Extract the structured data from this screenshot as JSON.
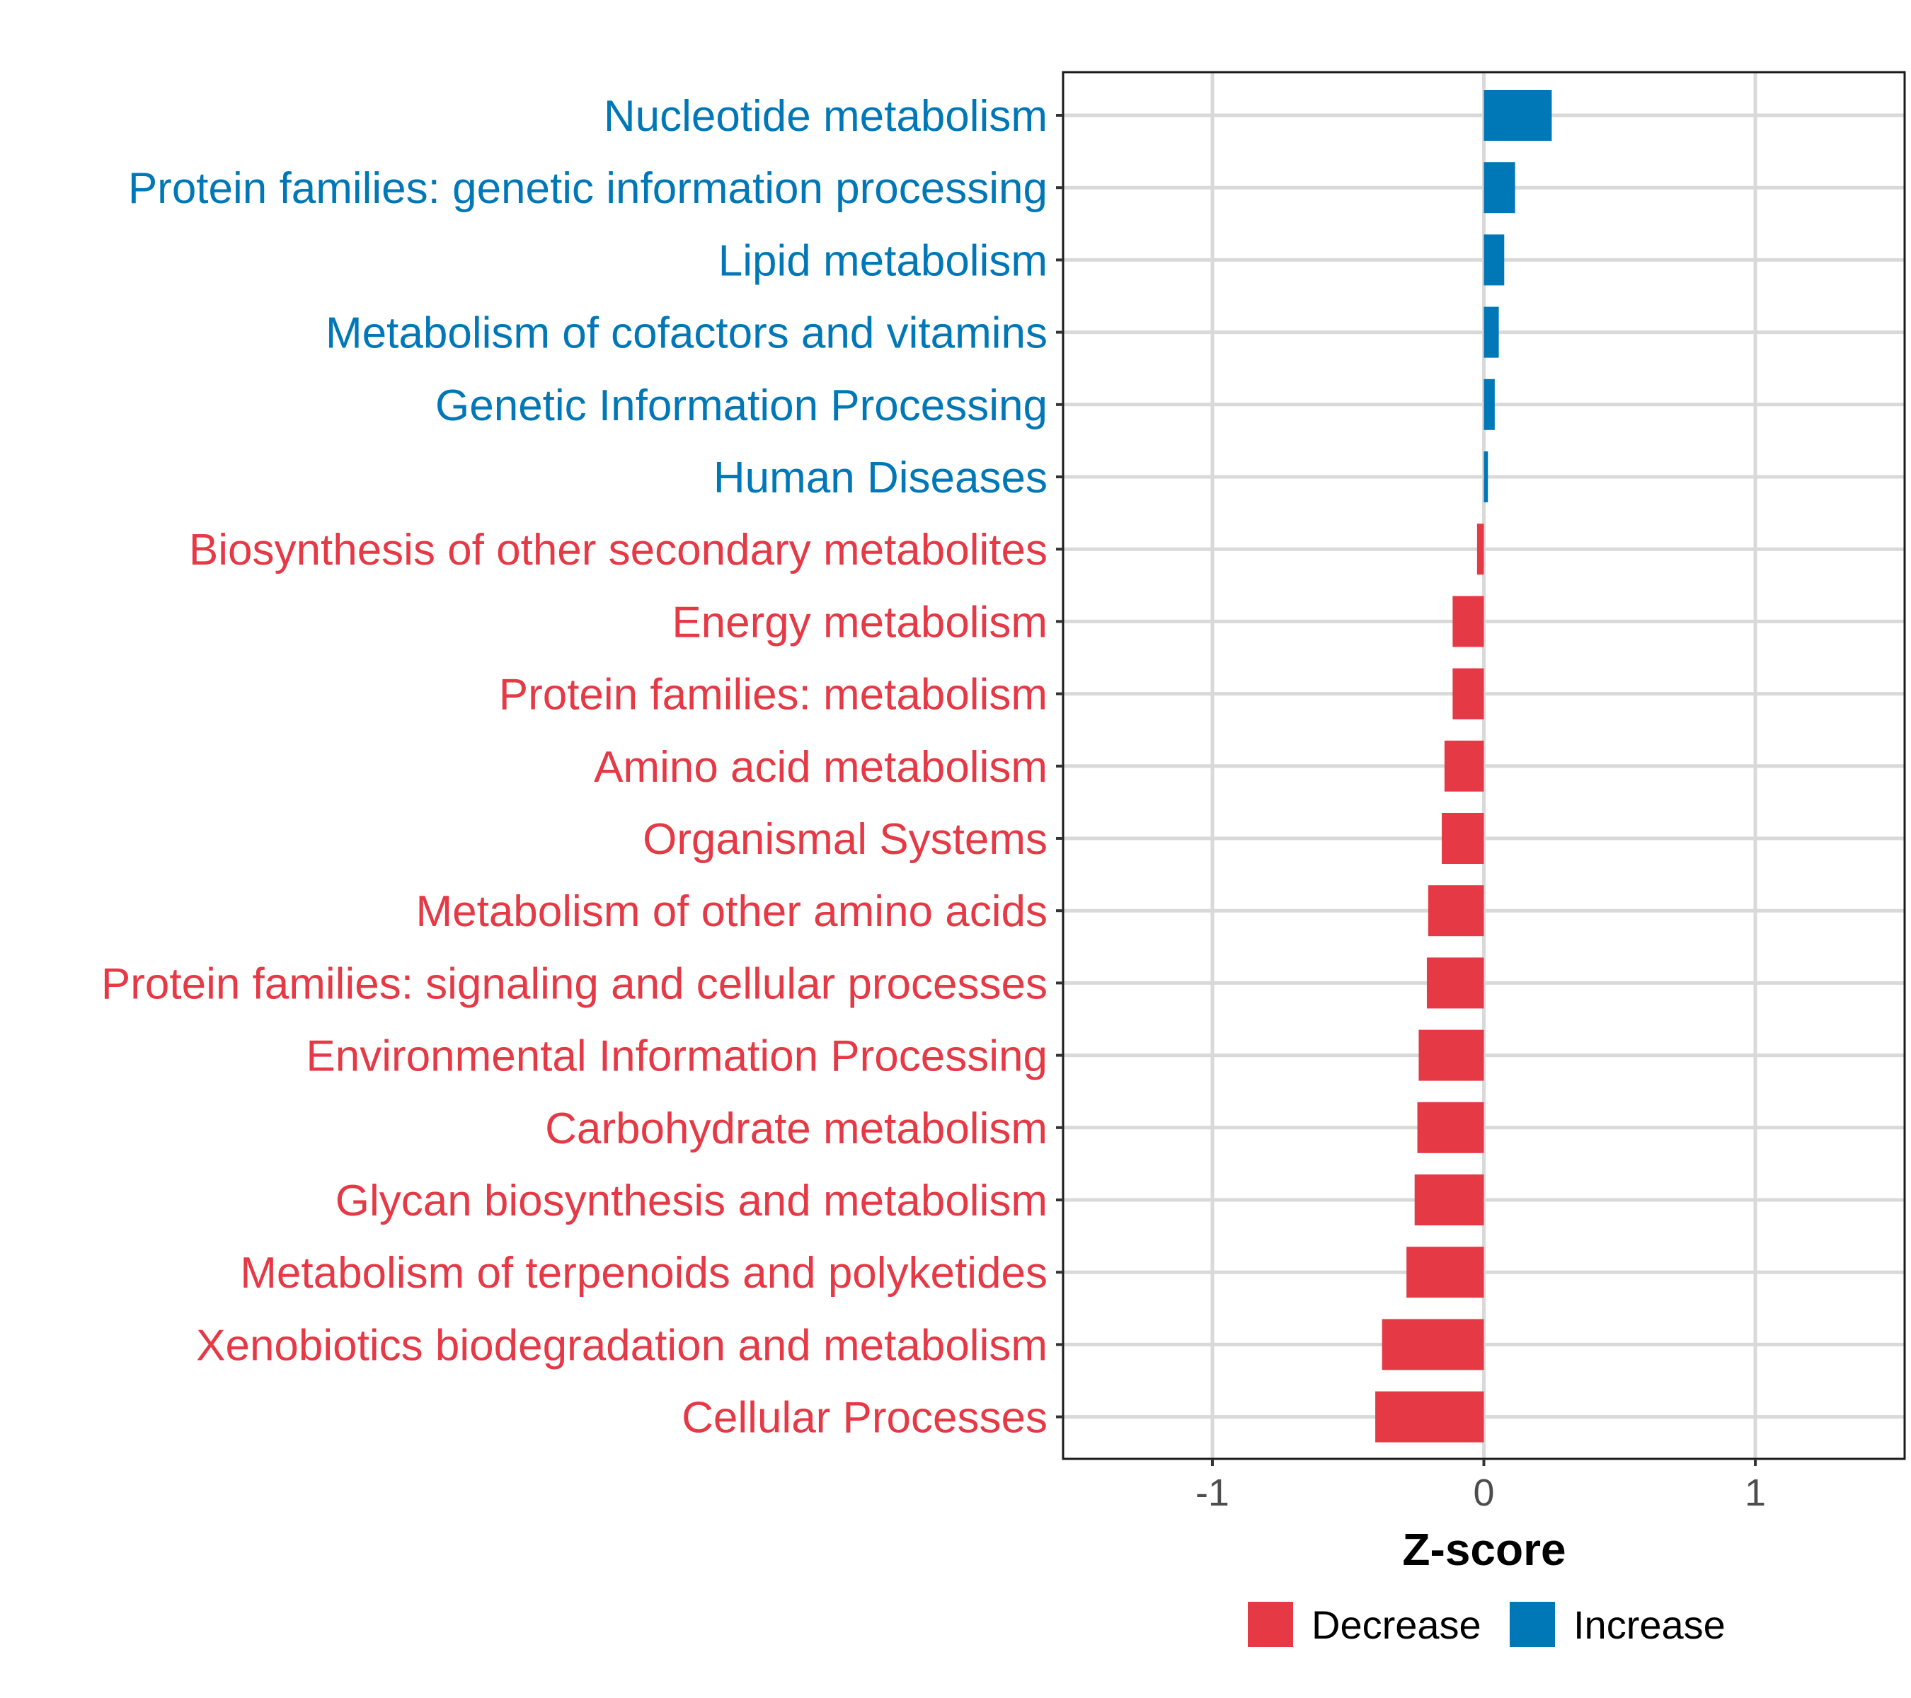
{
  "chart_data": {
    "type": "bar",
    "orientation": "horizontal",
    "xlabel": "Z-score",
    "xlim": [
      -1.55,
      1.55
    ],
    "xticks": [
      -1,
      0,
      1
    ],
    "xtick_labels": [
      "-1",
      "0",
      "1"
    ],
    "grid": true,
    "categories": [
      "Nucleotide metabolism",
      "Protein families: genetic information processing",
      "Lipid metabolism",
      "Metabolism of cofactors and vitamins",
      "Genetic Information Processing",
      "Human Diseases",
      "Biosynthesis of other secondary metabolites",
      "Energy metabolism",
      "Protein families: metabolism",
      "Amino acid metabolism",
      "Organismal Systems",
      "Metabolism of other amino acids",
      "Protein families: signaling and cellular processes",
      "Environmental Information Processing",
      "Carbohydrate metabolism",
      "Glycan biosynthesis and metabolism",
      "Metabolism of terpenoids and polyketides",
      "Xenobiotics biodegradation and metabolism",
      "Cellular Processes"
    ],
    "values": [
      0.25,
      0.115,
      0.075,
      0.055,
      0.04,
      0.015,
      -0.025,
      -0.115,
      -0.115,
      -0.145,
      -0.155,
      -0.205,
      -0.21,
      -0.24,
      -0.245,
      -0.255,
      -0.285,
      -0.375,
      -0.4
    ],
    "legend": {
      "position": "bottom",
      "entries": [
        {
          "label": "Decrease",
          "color": "#E63946"
        },
        {
          "label": "Increase",
          "color": "#0077B6"
        }
      ]
    }
  }
}
